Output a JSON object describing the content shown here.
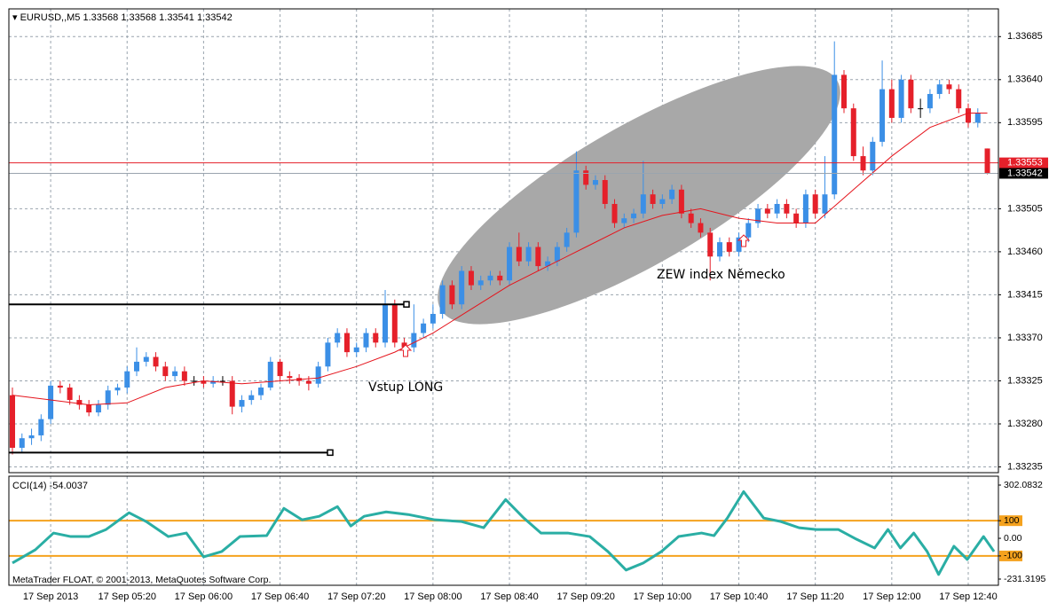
{
  "chart_data": {
    "type": "candlestick",
    "symbol": "EURUSD,,M5",
    "categories": [
      null,
      null,
      null,
      null,
      "17 Sep 2013",
      null,
      null,
      null,
      null,
      null,
      null,
      null,
      "17 Sep 05:20",
      null,
      null,
      null,
      null,
      null,
      null,
      null,
      "17 Sep 06:00",
      null,
      null,
      null,
      null,
      null,
      null,
      null,
      "17 Sep 06:40",
      null,
      null,
      null,
      null,
      null,
      null,
      null,
      "17 Sep 07:20",
      null,
      null,
      null,
      null,
      null,
      null,
      null,
      "17 Sep 08:00",
      null,
      null,
      null,
      null,
      null,
      null,
      null,
      "17 Sep 08:40",
      null,
      null,
      null,
      null,
      null,
      null,
      null,
      "17 Sep 09:20",
      null,
      null,
      null,
      null,
      null,
      null,
      null,
      "17 Sep 10:00",
      null,
      null,
      null,
      null,
      null,
      null,
      null,
      "17 Sep 10:40",
      null,
      null,
      null,
      null,
      null,
      null,
      null,
      "17 Sep 11:20",
      null,
      null,
      null,
      null,
      null,
      null,
      null,
      "17 Sep 12:00",
      null,
      null,
      null,
      null,
      null,
      null,
      null,
      "17 Sep 12:40",
      null,
      null
    ],
    "open": [
      1.3331,
      1.33255,
      1.33265,
      1.33268,
      1.33285,
      1.3332,
      1.33318,
      1.33305,
      1.333,
      1.33292,
      1.333,
      1.33315,
      1.33318,
      1.33335,
      1.33345,
      1.3335,
      1.3334,
      1.3333,
      1.33335,
      1.33325,
      1.33325,
      1.33322,
      1.33325,
      1.33325,
      1.33298,
      1.33305,
      1.3331,
      1.33318,
      1.33345,
      1.3333,
      1.33328,
      1.33325,
      1.33322,
      1.3334,
      1.33365,
      1.33375,
      1.33355,
      1.3336,
      1.33375,
      1.33365,
      1.33405,
      1.33365,
      1.3336,
      1.33375,
      1.33385,
      1.33395,
      1.33425,
      1.33405,
      1.3344,
      1.33425,
      1.3343,
      1.33435,
      1.3343,
      1.33465,
      1.3345,
      1.33465,
      1.33445,
      1.3345,
      1.33465,
      1.3348,
      1.33545,
      1.3353,
      1.33535,
      1.3351,
      1.3349,
      1.33495,
      1.335,
      1.3352,
      1.3351,
      1.33515,
      1.33525,
      1.335,
      1.3349,
      1.3348,
      1.33455,
      1.3347,
      1.3346,
      1.33475,
      1.3349,
      1.33505,
      1.335,
      1.3351,
      1.335,
      1.3349,
      1.3352,
      1.335,
      1.3352,
      1.33645,
      1.3361,
      1.3356,
      1.33545,
      1.33575,
      1.3363,
      1.336,
      1.3364,
      1.3361,
      1.3361,
      1.33625,
      1.33635,
      1.3363,
      1.3361,
      1.33595,
      1.33568
    ],
    "high": [
      1.33318,
      1.3327,
      1.33275,
      1.3329,
      1.33325,
      1.33325,
      1.33322,
      1.3331,
      1.33305,
      1.33305,
      1.3332,
      1.33322,
      1.3334,
      1.3336,
      1.33355,
      1.33355,
      1.33345,
      1.3334,
      1.3334,
      1.3333,
      1.3333,
      1.3333,
      1.3333,
      1.3333,
      1.3331,
      1.33315,
      1.33322,
      1.3335,
      1.33348,
      1.33335,
      1.33332,
      1.3333,
      1.33345,
      1.3337,
      1.3338,
      1.3338,
      1.33365,
      1.3338,
      1.3338,
      1.3342,
      1.3341,
      1.3337,
      1.33405,
      1.3339,
      1.33405,
      1.3343,
      1.3343,
      1.33445,
      1.33445,
      1.33435,
      1.3344,
      1.3344,
      1.3347,
      1.3348,
      1.3347,
      1.3347,
      1.33455,
      1.3347,
      1.33485,
      1.33565,
      1.3355,
      1.3354,
      1.3354,
      1.33515,
      1.335,
      1.33505,
      1.33555,
      1.33525,
      1.3352,
      1.3353,
      1.3353,
      1.33505,
      1.33495,
      1.33485,
      1.33475,
      1.33475,
      1.3348,
      1.33495,
      1.3351,
      1.3351,
      1.33515,
      1.33515,
      1.33505,
      1.33525,
      1.33525,
      1.3356,
      1.3368,
      1.3365,
      1.33615,
      1.3357,
      1.3358,
      1.3366,
      1.3364,
      1.33645,
      1.33645,
      1.3362,
      1.3363,
      1.3364,
      1.3364,
      1.33635,
      1.33615,
      1.3361,
      1.33568
    ],
    "low": [
      1.33248,
      1.3325,
      1.33258,
      1.33262,
      1.3328,
      1.33312,
      1.333,
      1.33295,
      1.33288,
      1.33288,
      1.33295,
      1.3331,
      1.33312,
      1.3333,
      1.3334,
      1.33335,
      1.33325,
      1.33325,
      1.3332,
      1.3332,
      1.33318,
      1.33318,
      1.3332,
      1.3329,
      1.33292,
      1.333,
      1.33305,
      1.33315,
      1.33325,
      1.33322,
      1.3332,
      1.33315,
      1.33318,
      1.33335,
      1.3336,
      1.3335,
      1.3335,
      1.33355,
      1.3336,
      1.3336,
      1.3336,
      1.33355,
      1.33355,
      1.3337,
      1.3338,
      1.3339,
      1.334,
      1.334,
      1.3342,
      1.3342,
      1.33425,
      1.33425,
      1.33425,
      1.33445,
      1.33445,
      1.3344,
      1.3344,
      1.33445,
      1.3346,
      1.33475,
      1.33525,
      1.33525,
      1.33505,
      1.33485,
      1.33485,
      1.3349,
      1.33495,
      1.33505,
      1.33505,
      1.3351,
      1.33495,
      1.33485,
      1.33475,
      1.3343,
      1.3345,
      1.33455,
      1.33455,
      1.3347,
      1.33485,
      1.33495,
      1.33495,
      1.33495,
      1.33485,
      1.33485,
      1.33495,
      1.33495,
      1.33515,
      1.33605,
      1.33555,
      1.3354,
      1.3354,
      1.3357,
      1.33595,
      1.33595,
      1.33605,
      1.336,
      1.33605,
      1.3362,
      1.33625,
      1.33605,
      1.3359,
      1.3359,
      1.33541
    ],
    "close": [
      1.33255,
      1.33265,
      1.33268,
      1.33285,
      1.3332,
      1.33318,
      1.33305,
      1.333,
      1.33292,
      1.333,
      1.33315,
      1.33318,
      1.33335,
      1.33345,
      1.3335,
      1.3334,
      1.3333,
      1.33335,
      1.33325,
      1.33325,
      1.33322,
      1.33325,
      1.33325,
      1.33298,
      1.33305,
      1.3331,
      1.33318,
      1.33345,
      1.3333,
      1.33328,
      1.33325,
      1.33322,
      1.3334,
      1.33365,
      1.33375,
      1.33355,
      1.3336,
      1.33375,
      1.33365,
      1.33405,
      1.33365,
      1.3336,
      1.33375,
      1.33385,
      1.33395,
      1.33425,
      1.33405,
      1.3344,
      1.33425,
      1.3343,
      1.33435,
      1.3343,
      1.33465,
      1.3345,
      1.33465,
      1.33445,
      1.3345,
      1.33465,
      1.3348,
      1.33545,
      1.3353,
      1.33535,
      1.3351,
      1.3349,
      1.33495,
      1.335,
      1.3352,
      1.3351,
      1.33515,
      1.33525,
      1.335,
      1.3349,
      1.3348,
      1.33455,
      1.3347,
      1.3346,
      1.33475,
      1.3349,
      1.33505,
      1.335,
      1.3351,
      1.335,
      1.3349,
      1.3352,
      1.335,
      1.3352,
      1.33645,
      1.3361,
      1.3356,
      1.33545,
      1.33575,
      1.3363,
      1.336,
      1.3364,
      1.3361,
      1.3361,
      1.33625,
      1.33635,
      1.3363,
      1.3361,
      1.33595,
      1.33605,
      1.33542
    ],
    "bull_color": "#3b8fe6",
    "bear_color": "#e5202a",
    "ylim": [
      1.33229,
      1.33714
    ],
    "yticks": [
      1.33685,
      {
        "value": 1.3364,
        "label": "1.33640"
      },
      1.33595,
      1.33505,
      {
        "value": 1.3346,
        "label": "1.33460"
      },
      1.33415,
      {
        "value": 1.3337,
        "label": "1.33370"
      },
      1.33325,
      {
        "value": 1.3328,
        "label": "1.33280"
      },
      1.33235
    ],
    "grid": true,
    "ma": {
      "color": "#e5141c",
      "x": [
        0,
        4,
        8,
        12,
        16,
        20,
        24,
        28,
        32,
        36,
        40,
        44,
        48,
        52,
        56,
        60,
        64,
        68,
        72,
        76,
        80,
        84,
        88,
        92,
        96,
        100,
        102
      ],
      "values": [
        1.3331,
        1.33305,
        1.333,
        1.33302,
        1.33318,
        1.33325,
        1.33322,
        1.33325,
        1.33328,
        1.3334,
        1.33355,
        1.33375,
        1.334,
        1.33425,
        1.33445,
        1.33465,
        1.33485,
        1.33498,
        1.33505,
        1.33495,
        1.3349,
        1.3349,
        1.33525,
        1.3356,
        1.3359,
        1.33605,
        1.33605
      ]
    },
    "levels": [
      1.33405,
      1.3325
    ],
    "ask": 1.33553,
    "ask_color": "#e5202a",
    "annotations": [
      "Vstup LONG",
      "ZEW index Německo"
    ],
    "watermark": "MetaTrader FLOAT, © 2001-2013, MetaQuotes Software Corp.",
    "indicator": {
      "title": "CCI(14) -54.0037",
      "color": "#2aaea4",
      "x": [
        0,
        2.4,
        4.3,
        6.1,
        8,
        9.8,
        12.2,
        14,
        16.3,
        18.2,
        20,
        21.9,
        23.8,
        26.6,
        28.4,
        30.3,
        32.1,
        34,
        35.4,
        36.8,
        39.1,
        41.4,
        44.2,
        47,
        49.3,
        51.6,
        53.5,
        55.3,
        58.1,
        60.4,
        62.3,
        64.2,
        66,
        67.9,
        69.7,
        72.1,
        73.4,
        74.8,
        76.5,
        78.6,
        80.4,
        82.3,
        84.1,
        86.4,
        88.3,
        90.2,
        91.6,
        92.9,
        94.3,
        95.7,
        96.9,
        98.5,
        99.9,
        101.6,
        102.7
      ],
      "values": [
        -140,
        -65,
        30,
        10,
        10,
        50,
        145,
        95,
        10,
        30,
        -105,
        -75,
        10,
        15,
        170,
        105,
        125,
        180,
        70,
        125,
        150,
        135,
        105,
        95,
        60,
        220,
        115,
        30,
        30,
        10,
        -75,
        -180,
        -140,
        -75,
        10,
        30,
        15,
        115,
        265,
        115,
        95,
        60,
        50,
        50,
        -5,
        -55,
        50,
        -55,
        30,
        -75,
        -205,
        -45,
        -120,
        10,
        -75
      ],
      "ylim": [
        -231.3195,
        302.0832
      ],
      "yticks": [
        302.0832,
        100,
        {
          "value": 0,
          "label": "0.00"
        },
        -100,
        -231.3195
      ],
      "levels": [
        100,
        -100
      ],
      "level_color": "#f5a21e"
    }
  }
}
